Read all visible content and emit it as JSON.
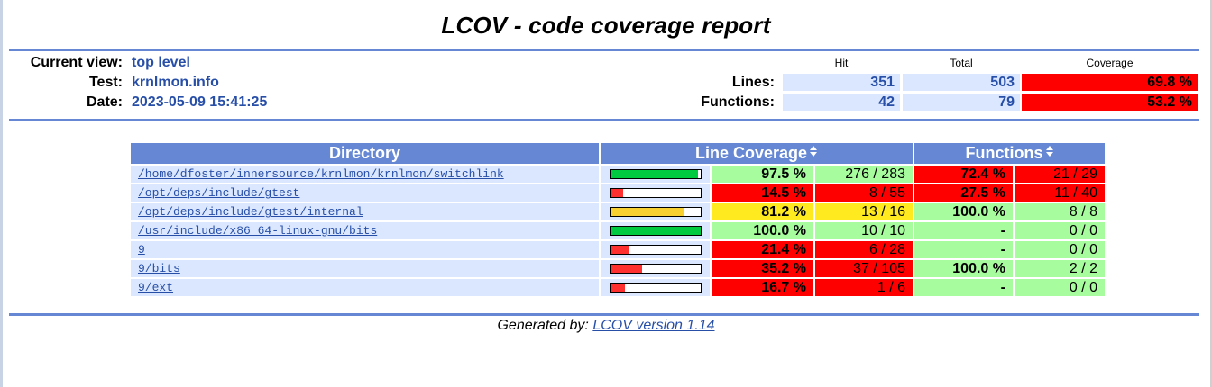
{
  "title": "LCOV - code coverage report",
  "header": {
    "current_view_label": "Current view:",
    "current_view_value": "top level",
    "test_label": "Test:",
    "test_value": "krnlmon.info",
    "date_label": "Date:",
    "date_value": "2023-05-09 15:41:25"
  },
  "summary": {
    "col_hit": "Hit",
    "col_total": "Total",
    "col_coverage": "Coverage",
    "lines_label": "Lines:",
    "lines_hit": "351",
    "lines_total": "503",
    "lines_coverage": "69.8 %",
    "functions_label": "Functions:",
    "functions_hit": "42",
    "functions_total": "79",
    "functions_coverage": "53.2 %"
  },
  "table": {
    "col_directory": "Directory",
    "col_line_coverage": "Line Coverage",
    "col_functions": "Functions",
    "rows": [
      {
        "dir": "/home/dfoster/innersource/krnlmon/krnlmon/switchlink",
        "line_pct": "97.5 %",
        "line_cnt": "276 / 283",
        "line_rate": 0.975,
        "func_pct": "72.4 %",
        "func_cnt": "21 / 29"
      },
      {
        "dir": "/opt/deps/include/gtest",
        "line_pct": "14.5 %",
        "line_cnt": "8 / 55",
        "line_rate": 0.145,
        "func_pct": "27.5 %",
        "func_cnt": "11 / 40"
      },
      {
        "dir": "/opt/deps/include/gtest/internal",
        "line_pct": "81.2 %",
        "line_cnt": "13 / 16",
        "line_rate": 0.812,
        "func_pct": "100.0 %",
        "func_cnt": "8 / 8"
      },
      {
        "dir": "/usr/include/x86_64-linux-gnu/bits",
        "line_pct": "100.0 %",
        "line_cnt": "10 / 10",
        "line_rate": 1.0,
        "func_pct": "-",
        "func_cnt": "0 / 0"
      },
      {
        "dir": "9",
        "line_pct": "21.4 %",
        "line_cnt": "6 / 28",
        "line_rate": 0.214,
        "func_pct": "-",
        "func_cnt": "0 / 0"
      },
      {
        "dir": "9/bits",
        "line_pct": "35.2 %",
        "line_cnt": "37 / 105",
        "line_rate": 0.352,
        "func_pct": "100.0 %",
        "func_cnt": "2 / 2"
      },
      {
        "dir": "9/ext",
        "line_pct": "16.7 %",
        "line_cnt": "1 / 6",
        "line_rate": 0.167,
        "func_pct": "-",
        "func_cnt": "0 / 0"
      }
    ]
  },
  "footer": {
    "generated_by": "Generated by:",
    "lcov_version": "LCOV version 1.14"
  },
  "colors": {
    "header_blue": "#6688d4",
    "value_blue": "#284fa8",
    "row_bg": "#dae7fe",
    "high": "#a7fc9d",
    "medium": "#ffea20",
    "low": "#ff0000",
    "bar_high": "#00cb40",
    "bar_medium": "#f8d030",
    "bar_low": "#ff3030"
  }
}
